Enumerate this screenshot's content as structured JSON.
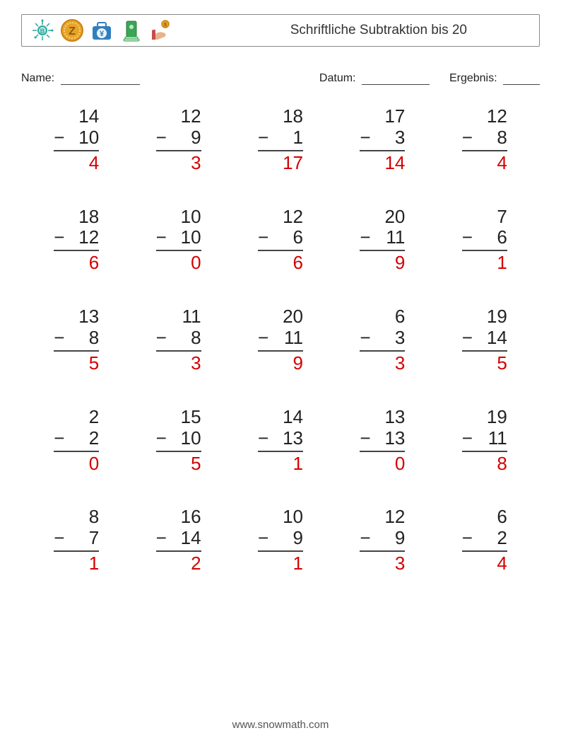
{
  "header": {
    "title": "Schriftliche Subtraktion bis 20",
    "icons": [
      "crypto-coin-icon",
      "z-coin-icon",
      "yen-briefcase-icon",
      "cash-stack-icon",
      "hand-coin-icon"
    ]
  },
  "fields": {
    "name_label": "Name:",
    "date_label": "Datum:",
    "result_label": "Ergebnis:",
    "name_line_width": 112,
    "date_line_width": 96,
    "result_line_width": 52
  },
  "style": {
    "problem_fontsize": 26,
    "problem_color": "#222222",
    "answer_color": "#d40000",
    "rule_color": "#444444",
    "border_color": "#888888",
    "background_color": "#ffffff",
    "grid_cols": 5,
    "grid_rows": 5,
    "row_gap": 44,
    "stack_width": 64
  },
  "problems": [
    {
      "a": 14,
      "b": 10,
      "ans": 4
    },
    {
      "a": 12,
      "b": 9,
      "ans": 3
    },
    {
      "a": 18,
      "b": 1,
      "ans": 17
    },
    {
      "a": 17,
      "b": 3,
      "ans": 14
    },
    {
      "a": 12,
      "b": 8,
      "ans": 4
    },
    {
      "a": 18,
      "b": 12,
      "ans": 6
    },
    {
      "a": 10,
      "b": 10,
      "ans": 0
    },
    {
      "a": 12,
      "b": 6,
      "ans": 6
    },
    {
      "a": 20,
      "b": 11,
      "ans": 9
    },
    {
      "a": 7,
      "b": 6,
      "ans": 1
    },
    {
      "a": 13,
      "b": 8,
      "ans": 5
    },
    {
      "a": 11,
      "b": 8,
      "ans": 3
    },
    {
      "a": 20,
      "b": 11,
      "ans": 9
    },
    {
      "a": 6,
      "b": 3,
      "ans": 3
    },
    {
      "a": 19,
      "b": 14,
      "ans": 5
    },
    {
      "a": 2,
      "b": 2,
      "ans": 0
    },
    {
      "a": 15,
      "b": 10,
      "ans": 5
    },
    {
      "a": 14,
      "b": 13,
      "ans": 1
    },
    {
      "a": 13,
      "b": 13,
      "ans": 0
    },
    {
      "a": 19,
      "b": 11,
      "ans": 8
    },
    {
      "a": 8,
      "b": 7,
      "ans": 1
    },
    {
      "a": 16,
      "b": 14,
      "ans": 2
    },
    {
      "a": 10,
      "b": 9,
      "ans": 1
    },
    {
      "a": 12,
      "b": 9,
      "ans": 3
    },
    {
      "a": 6,
      "b": 2,
      "ans": 4
    }
  ],
  "footer": {
    "text": "www.snowmath.com"
  },
  "icon_palette": {
    "teal": "#2aa79b",
    "gold": "#e8a326",
    "gold_dark": "#c78414",
    "blue": "#2f7fbf",
    "green": "#3aa655",
    "skin": "#e8b28a",
    "red": "#c94b4b"
  }
}
